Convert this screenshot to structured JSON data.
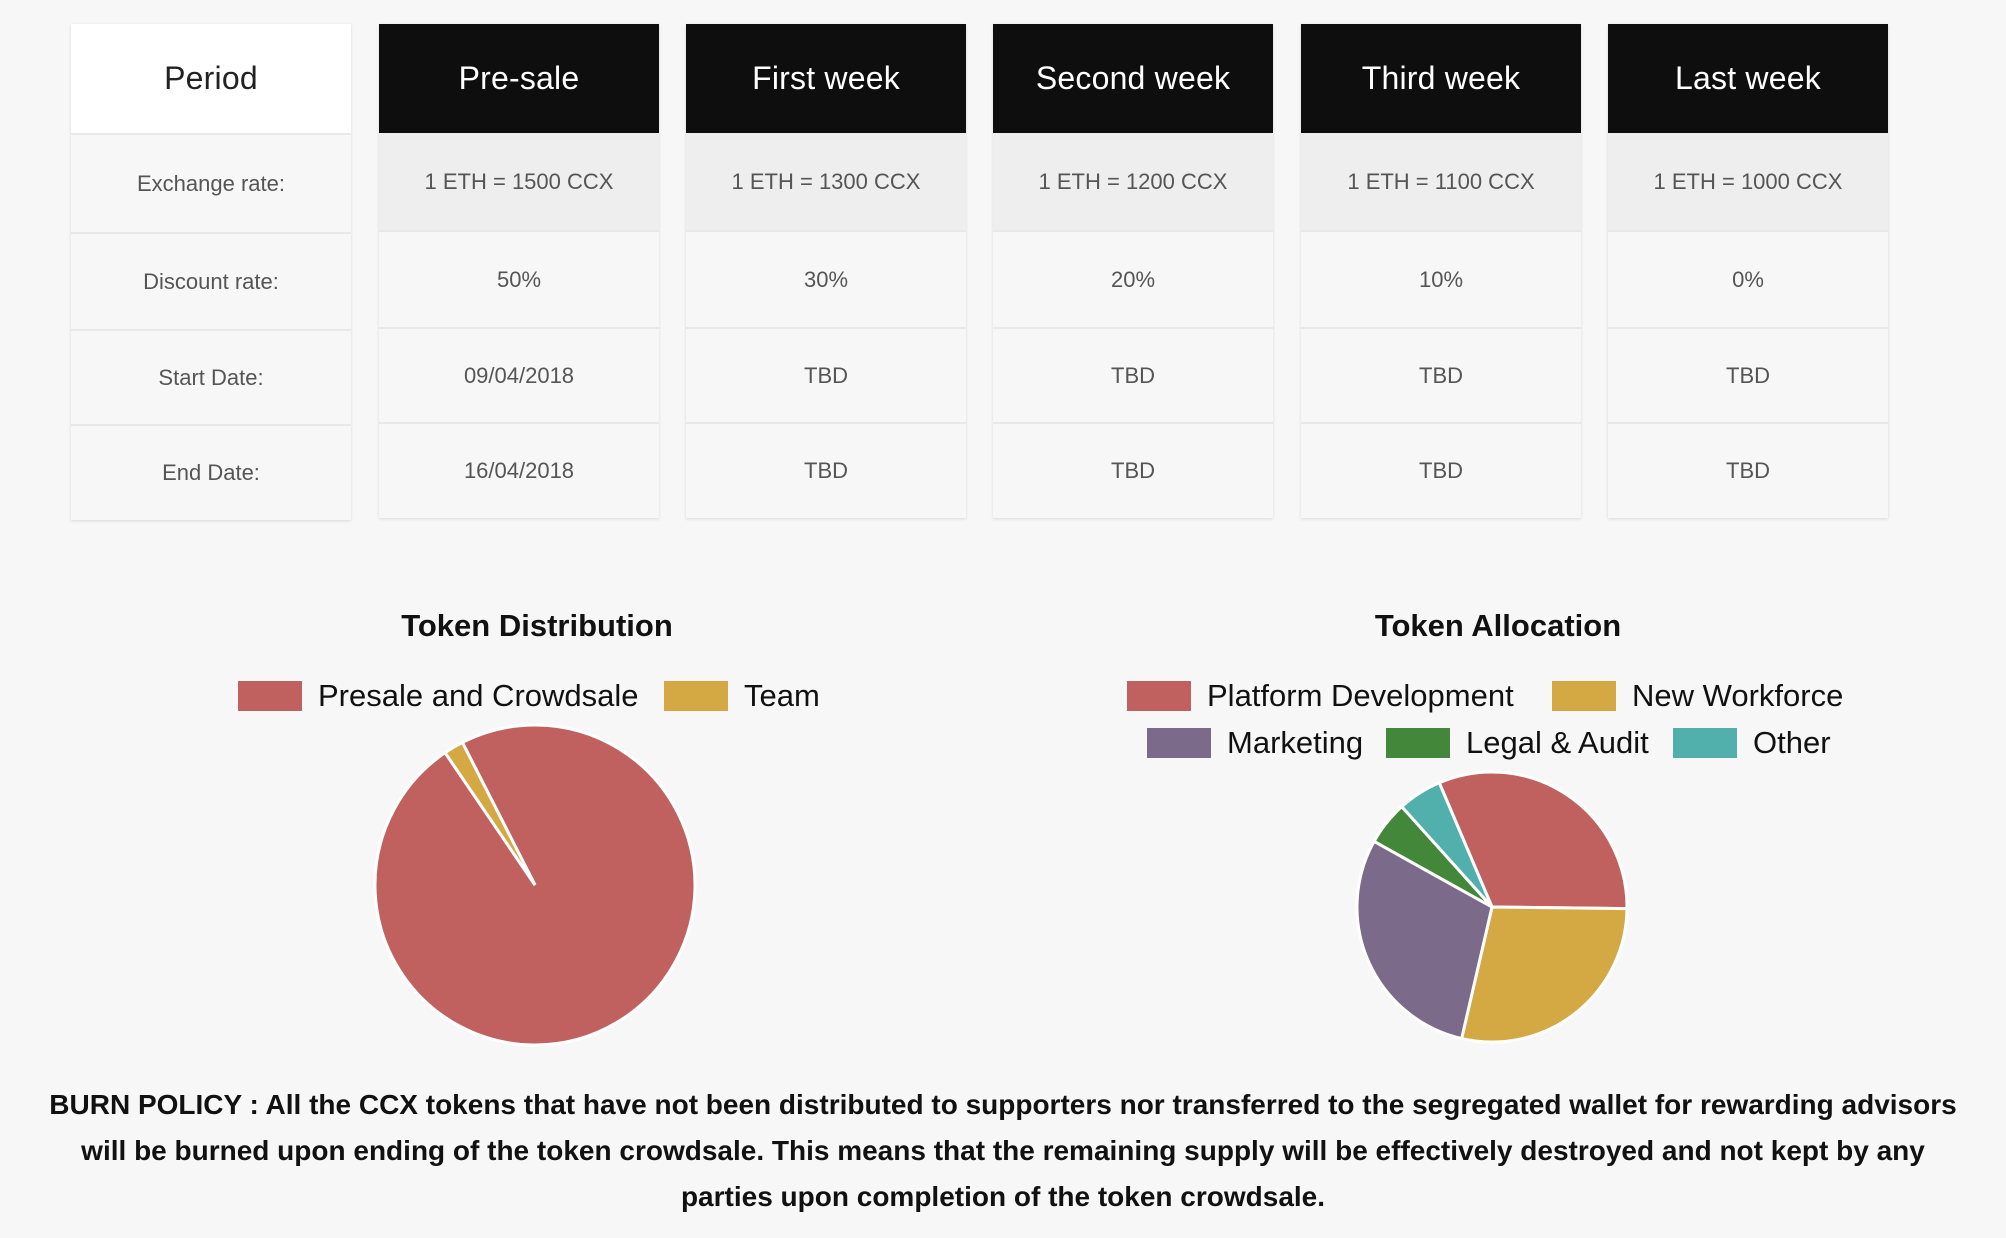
{
  "table": {
    "period": {
      "header": "Period",
      "rows": [
        "Exchange rate:",
        "Discount rate:",
        "Start Date:",
        "End Date:"
      ]
    },
    "phases": [
      {
        "name": "Pre-sale",
        "rate": "1 ETH = 1500 CCX",
        "discount": "50%",
        "start": "09/04/2018",
        "end": "16/04/2018"
      },
      {
        "name": "First week",
        "rate": "1 ETH = 1300 CCX",
        "discount": "30%",
        "start": "TBD",
        "end": "TBD"
      },
      {
        "name": "Second week",
        "rate": "1 ETH = 1200 CCX",
        "discount": "20%",
        "start": "TBD",
        "end": "TBD"
      },
      {
        "name": "Third week",
        "rate": "1 ETH = 1100 CCX",
        "discount": "10%",
        "start": "TBD",
        "end": "TBD"
      },
      {
        "name": "Last week",
        "rate": "1 ETH = 1000 CCX",
        "discount": "0%",
        "start": "TBD",
        "end": "TBD"
      }
    ]
  },
  "chart_data": [
    {
      "type": "pie",
      "title": "Token Distribution",
      "categories": [
        "Presale and Crowdsale",
        "Team"
      ],
      "values": [
        98,
        2
      ],
      "colors": [
        "#c0615f",
        "#d4a843"
      ]
    },
    {
      "type": "pie",
      "title": "Token Allocation",
      "categories": [
        "Platform Development",
        "New Workforce",
        "Marketing",
        "Legal & Audit",
        "Other"
      ],
      "values": [
        30,
        27,
        28,
        5,
        5
      ],
      "colors": [
        "#c0615f",
        "#d4a843",
        "#7b6a89",
        "#43883a",
        "#52b0ac"
      ]
    }
  ],
  "burn_policy": "BURN POLICY : All the CCX tokens that have not been distributed to supporters nor transferred to the segregated wallet for rewarding advisors will be burned upon ending of the token crowdsale. This means that the remaining supply will be effectively destroyed and not kept by any parties upon completion of the token crowdsale."
}
